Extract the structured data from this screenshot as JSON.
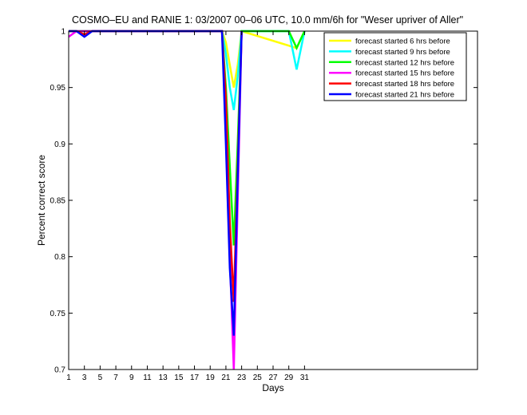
{
  "chart_data": {
    "type": "line",
    "title": "COSMO–EU and RANIE 1: 03/2007 00–06 UTC, 10.0 mm/6h for \"Weser upriver of Aller\"",
    "xlabel": "Days",
    "ylabel": "Percent correct score",
    "xlim": [
      1,
      53
    ],
    "ylim": [
      0.7,
      1.0
    ],
    "xticks": [
      1,
      3,
      5,
      7,
      9,
      11,
      13,
      15,
      17,
      19,
      21,
      23,
      25,
      27,
      29,
      31
    ],
    "yticks": [
      0.7,
      0.75,
      0.8,
      0.85,
      0.9,
      0.95,
      1.0
    ],
    "ytick_labels": [
      "0.7",
      "0.75",
      "0.8",
      "0.85",
      "0.9",
      "0.95",
      "1"
    ],
    "grid": false,
    "legend_position": "top-right",
    "series": [
      {
        "name": "forecast started 6 hrs before",
        "color": "#ffff00",
        "x": [
          1,
          2,
          3,
          4,
          20.5,
          21,
          21.5,
          22,
          22.5,
          23,
          30,
          31
        ],
        "y": [
          1,
          1,
          1,
          1,
          1,
          0.99,
          0.97,
          0.95,
          0.97,
          1,
          0.985,
          1
        ]
      },
      {
        "name": "forecast started 9 hrs before",
        "color": "#00ffff",
        "x": [
          1,
          2,
          3,
          4,
          20.5,
          21,
          21.5,
          22,
          22.5,
          23,
          29,
          30,
          31
        ],
        "y": [
          1,
          1,
          1,
          1,
          1,
          0.98,
          0.95,
          0.93,
          0.96,
          1,
          1,
          0.966,
          1
        ]
      },
      {
        "name": "forecast started 12 hrs before",
        "color": "#00ff00",
        "x": [
          1,
          2,
          3,
          4,
          20.5,
          21,
          21.5,
          22,
          22.5,
          23,
          29,
          30,
          31
        ],
        "y": [
          1,
          1,
          1,
          1,
          1,
          0.95,
          0.88,
          0.81,
          0.9,
          1,
          1,
          0.985,
          1
        ]
      },
      {
        "name": "forecast started 15 hrs before",
        "color": "#ff00ff",
        "x": [
          1,
          2,
          3,
          4,
          20.5,
          21,
          21.5,
          22,
          22.5,
          23
        ],
        "y": [
          0.995,
          1,
          1,
          1,
          1,
          0.93,
          0.8,
          0.7,
          0.85,
          1
        ]
      },
      {
        "name": "forecast started 18 hrs before",
        "color": "#ff0000",
        "x": [
          1,
          2,
          3,
          4,
          20.5,
          21,
          21.5,
          22,
          22.5,
          23
        ],
        "y": [
          1,
          1,
          0.997,
          1,
          1,
          0.94,
          0.83,
          0.76,
          0.88,
          1
        ]
      },
      {
        "name": "forecast started 21 hrs before",
        "color": "#0000ff",
        "x": [
          1,
          2,
          3,
          4,
          20.5,
          21,
          21.5,
          22,
          22.5,
          23
        ],
        "y": [
          1,
          1,
          0.995,
          1,
          1,
          0.9,
          0.79,
          0.73,
          0.87,
          1
        ]
      }
    ]
  }
}
